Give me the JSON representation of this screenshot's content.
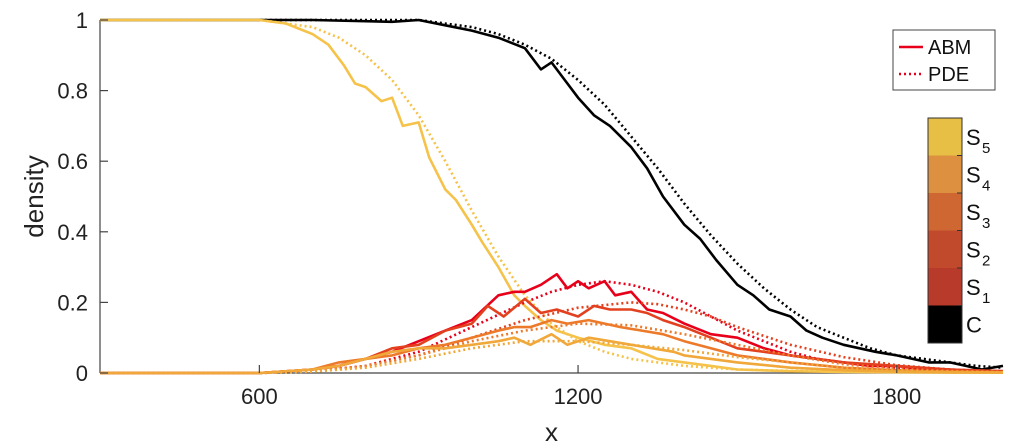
{
  "chart_data": {
    "type": "line",
    "xlabel": "x",
    "ylabel": "density",
    "xlim": [
      300,
      2000
    ],
    "ylim": [
      0,
      1
    ],
    "x_ticks": [
      600,
      1200,
      1800
    ],
    "x_tick_labels": [
      "600",
      "1200",
      "1800"
    ],
    "y_ticks": [
      0,
      0.2,
      0.4,
      0.6,
      0.8,
      1
    ],
    "y_tick_labels": [
      "0",
      "0.2",
      "0.4",
      "0.6",
      "0.8",
      "1"
    ],
    "legend": {
      "placement": "top-right",
      "entries": [
        {
          "label": "ABM",
          "style": "solid",
          "color": "#e8001b"
        },
        {
          "label": "PDE",
          "style": "dotted",
          "color": "#e8001b"
        }
      ]
    },
    "colorbar": {
      "placement": "right",
      "entries": [
        {
          "label": "S",
          "sub": "5",
          "color": "#e8bf45"
        },
        {
          "label": "S",
          "sub": "4",
          "color": "#dc9040"
        },
        {
          "label": "S",
          "sub": "3",
          "color": "#cf6732"
        },
        {
          "label": "S",
          "sub": "2",
          "color": "#c24a2c"
        },
        {
          "label": "S",
          "sub": "1",
          "color": "#b83a2a"
        },
        {
          "label": "C",
          "sub": "",
          "color": "#000000"
        }
      ]
    },
    "series": [
      {
        "style": "dotted",
        "color": "#000000",
        "x": [
          300,
          700,
          900,
          1000,
          1050,
          1100,
          1150,
          1200,
          1250,
          1300,
          1350,
          1400,
          1450,
          1500,
          1550,
          1600,
          1650,
          1700,
          1750,
          1800,
          1850,
          1900,
          1950,
          2000
        ],
        "y": [
          1.0,
          1.0,
          1.0,
          0.98,
          0.96,
          0.93,
          0.89,
          0.83,
          0.76,
          0.67,
          0.58,
          0.48,
          0.39,
          0.31,
          0.24,
          0.18,
          0.13,
          0.1,
          0.07,
          0.05,
          0.04,
          0.03,
          0.02,
          0.015
        ]
      },
      {
        "style": "solid",
        "color": "#000000",
        "x": [
          300,
          700,
          850,
          900,
          950,
          1000,
          1050,
          1100,
          1130,
          1150,
          1180,
          1200,
          1230,
          1260,
          1300,
          1330,
          1360,
          1400,
          1430,
          1460,
          1500,
          1530,
          1560,
          1600,
          1630,
          1660,
          1700,
          1730,
          1760,
          1800,
          1830,
          1860,
          1900,
          1930,
          1960,
          2000
        ],
        "y": [
          1.0,
          1.0,
          0.995,
          1.0,
          0.985,
          0.97,
          0.95,
          0.92,
          0.86,
          0.88,
          0.82,
          0.78,
          0.73,
          0.7,
          0.64,
          0.58,
          0.5,
          0.42,
          0.38,
          0.32,
          0.25,
          0.22,
          0.18,
          0.16,
          0.12,
          0.1,
          0.08,
          0.07,
          0.06,
          0.05,
          0.04,
          0.03,
          0.03,
          0.02,
          0.01,
          0.02
        ]
      },
      {
        "style": "dotted",
        "color": "#f5c24a",
        "x": [
          300,
          600,
          700,
          750,
          800,
          850,
          900,
          950,
          1000,
          1050,
          1100,
          1150,
          1200,
          1250,
          1300,
          1350,
          1400,
          1450,
          1500,
          1550,
          1600,
          1650,
          1700,
          1800,
          1900,
          2000
        ],
        "y": [
          1.0,
          1.0,
          0.98,
          0.95,
          0.9,
          0.83,
          0.73,
          0.6,
          0.46,
          0.33,
          0.22,
          0.14,
          0.09,
          0.06,
          0.04,
          0.03,
          0.02,
          0.015,
          0.01,
          0.008,
          0.006,
          0.005,
          0.004,
          0.003,
          0.002,
          0.002
        ]
      },
      {
        "style": "solid",
        "color": "#f5c24a",
        "x": [
          300,
          600,
          650,
          700,
          730,
          760,
          780,
          800,
          830,
          850,
          870,
          900,
          920,
          950,
          970,
          1000,
          1020,
          1050,
          1080,
          1100,
          1130,
          1160,
          1200,
          1250,
          1300,
          1350,
          1400,
          1450,
          1500,
          1600,
          1700,
          1800,
          1900,
          2000
        ],
        "y": [
          1.0,
          1.0,
          0.99,
          0.96,
          0.93,
          0.87,
          0.82,
          0.81,
          0.77,
          0.78,
          0.7,
          0.71,
          0.61,
          0.52,
          0.49,
          0.42,
          0.37,
          0.3,
          0.22,
          0.19,
          0.15,
          0.12,
          0.1,
          0.08,
          0.07,
          0.04,
          0.03,
          0.02,
          0.01,
          0.005,
          0.003,
          0.002,
          0.001,
          0.001
        ]
      },
      {
        "style": "dotted",
        "color": "#e8001b",
        "x": [
          300,
          600,
          700,
          800,
          900,
          1000,
          1100,
          1150,
          1200,
          1250,
          1300,
          1350,
          1400,
          1450,
          1500,
          1550,
          1600,
          1650,
          1700,
          1800,
          1900,
          2000
        ],
        "y": [
          0.0,
          0.0,
          0.005,
          0.02,
          0.06,
          0.13,
          0.2,
          0.23,
          0.25,
          0.26,
          0.25,
          0.23,
          0.2,
          0.16,
          0.12,
          0.09,
          0.06,
          0.04,
          0.03,
          0.015,
          0.008,
          0.004
        ]
      },
      {
        "style": "solid",
        "color": "#e8001b",
        "x": [
          300,
          600,
          700,
          750,
          800,
          850,
          900,
          950,
          1000,
          1050,
          1080,
          1100,
          1130,
          1160,
          1180,
          1200,
          1220,
          1250,
          1270,
          1300,
          1330,
          1360,
          1400,
          1450,
          1500,
          1550,
          1600,
          1650,
          1700,
          1750,
          1800,
          1850,
          1900,
          1950,
          2000
        ],
        "y": [
          0.0,
          0.0,
          0.01,
          0.02,
          0.04,
          0.06,
          0.09,
          0.12,
          0.15,
          0.22,
          0.23,
          0.23,
          0.25,
          0.28,
          0.24,
          0.26,
          0.24,
          0.26,
          0.22,
          0.23,
          0.18,
          0.17,
          0.14,
          0.11,
          0.1,
          0.07,
          0.05,
          0.04,
          0.03,
          0.02,
          0.02,
          0.01,
          0.01,
          0.005,
          0.005
        ]
      },
      {
        "style": "dotted",
        "color": "#e3401f",
        "x": [
          300,
          600,
          700,
          800,
          900,
          1000,
          1100,
          1200,
          1300,
          1350,
          1400,
          1450,
          1500,
          1600,
          1700,
          1800,
          1900,
          2000
        ],
        "y": [
          0.0,
          0.0,
          0.005,
          0.02,
          0.05,
          0.1,
          0.15,
          0.185,
          0.2,
          0.195,
          0.18,
          0.16,
          0.13,
          0.08,
          0.045,
          0.022,
          0.01,
          0.005
        ]
      },
      {
        "style": "solid",
        "color": "#e3401f",
        "x": [
          300,
          600,
          700,
          750,
          800,
          850,
          900,
          950,
          1000,
          1030,
          1060,
          1100,
          1130,
          1160,
          1200,
          1230,
          1260,
          1300,
          1330,
          1360,
          1400,
          1450,
          1500,
          1550,
          1600,
          1650,
          1700,
          1800,
          1900,
          2000
        ],
        "y": [
          0.0,
          0.0,
          0.01,
          0.02,
          0.04,
          0.07,
          0.08,
          0.12,
          0.14,
          0.19,
          0.16,
          0.21,
          0.17,
          0.18,
          0.16,
          0.19,
          0.18,
          0.18,
          0.17,
          0.15,
          0.13,
          0.1,
          0.07,
          0.06,
          0.05,
          0.04,
          0.03,
          0.02,
          0.01,
          0.005
        ]
      },
      {
        "style": "dotted",
        "color": "#ec7a2a",
        "x": [
          300,
          600,
          700,
          800,
          900,
          1000,
          1100,
          1200,
          1300,
          1400,
          1500,
          1600,
          1700,
          1800,
          1900,
          2000
        ],
        "y": [
          0.0,
          0.0,
          0.005,
          0.02,
          0.05,
          0.09,
          0.12,
          0.14,
          0.135,
          0.11,
          0.08,
          0.05,
          0.025,
          0.012,
          0.006,
          0.003
        ]
      },
      {
        "style": "solid",
        "color": "#ec7a2a",
        "x": [
          300,
          600,
          700,
          750,
          800,
          850,
          900,
          950,
          1000,
          1050,
          1080,
          1110,
          1150,
          1180,
          1220,
          1250,
          1280,
          1320,
          1360,
          1400,
          1450,
          1500,
          1550,
          1600,
          1700,
          1800,
          1900,
          2000
        ],
        "y": [
          0.0,
          0.0,
          0.01,
          0.03,
          0.04,
          0.05,
          0.07,
          0.08,
          0.1,
          0.12,
          0.13,
          0.13,
          0.15,
          0.14,
          0.15,
          0.14,
          0.13,
          0.12,
          0.11,
          0.09,
          0.07,
          0.05,
          0.04,
          0.03,
          0.015,
          0.008,
          0.004,
          0.002
        ]
      },
      {
        "style": "dotted",
        "color": "#f0a83a",
        "x": [
          300,
          600,
          700,
          800,
          900,
          1000,
          1100,
          1200,
          1300,
          1400,
          1500,
          1600,
          1700,
          1800,
          1900,
          2000
        ],
        "y": [
          0.0,
          0.0,
          0.004,
          0.015,
          0.04,
          0.07,
          0.09,
          0.09,
          0.08,
          0.065,
          0.045,
          0.03,
          0.015,
          0.008,
          0.004,
          0.002
        ]
      },
      {
        "style": "solid",
        "color": "#f0a83a",
        "x": [
          300,
          600,
          700,
          750,
          800,
          850,
          900,
          950,
          1000,
          1050,
          1080,
          1110,
          1150,
          1180,
          1220,
          1260,
          1300,
          1340,
          1380,
          1400,
          1450,
          1500,
          1600,
          1700,
          1800,
          1900,
          2000
        ],
        "y": [
          0.0,
          0.0,
          0.01,
          0.02,
          0.04,
          0.06,
          0.07,
          0.07,
          0.08,
          0.09,
          0.1,
          0.08,
          0.11,
          0.08,
          0.1,
          0.09,
          0.08,
          0.07,
          0.06,
          0.05,
          0.04,
          0.03,
          0.015,
          0.008,
          0.004,
          0.002,
          0.001
        ]
      }
    ]
  }
}
